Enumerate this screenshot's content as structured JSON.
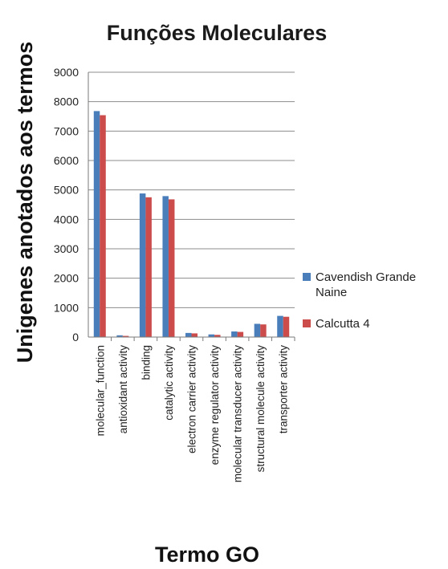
{
  "chart_data": {
    "type": "bar",
    "title": "Funções Moleculares",
    "xlabel": "Termo GO",
    "ylabel": "Unigenes anotados aos termos",
    "ylim": [
      0,
      9000
    ],
    "yticks": [
      "0",
      "1000",
      "2000",
      "3000",
      "4000",
      "5000",
      "6000",
      "7000",
      "8000",
      "9000"
    ],
    "grid": true,
    "legend_position": "right",
    "categories": [
      "molecular_function",
      "antioxidant activity",
      "binding",
      "catalytic activity",
      "electron carrier activity",
      "enzyme regulator activity",
      "molecular transducer activity",
      "structural molecule activity",
      "transporter activity"
    ],
    "series": [
      {
        "name_lines": [
          "Cavendish Grande",
          "Naine"
        ],
        "color": "#4a7ebb",
        "values": [
          7680,
          60,
          4880,
          4790,
          140,
          90,
          190,
          450,
          720
        ]
      },
      {
        "name_lines": [
          "Calcutta 4"
        ],
        "color": "#cc4c4c",
        "values": [
          7540,
          40,
          4750,
          4680,
          125,
          75,
          175,
          430,
          690
        ]
      }
    ]
  }
}
